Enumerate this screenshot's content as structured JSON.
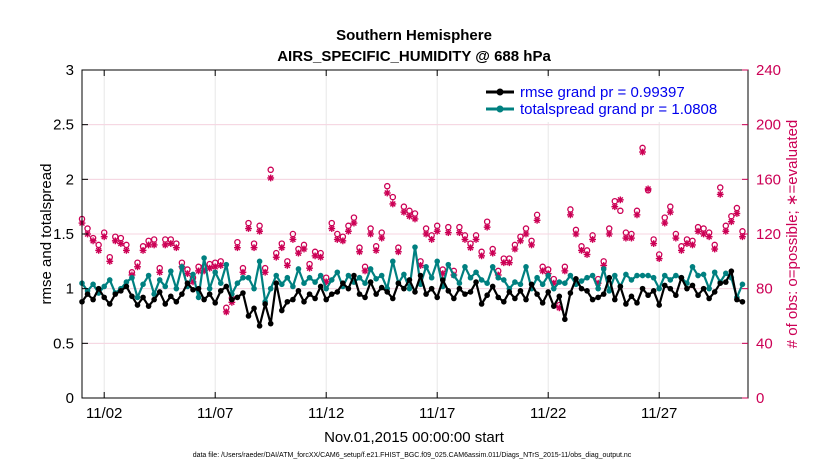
{
  "chart_data": {
    "type": "line",
    "title": "Southern Hemisphere",
    "subtitle": "AIRS_SPECIFIC_HUMIDITY @ 688 hPa",
    "xlabel": "Nov.01,2015 00:00:00 start",
    "ylabel": "rmse and totalspread",
    "y2label": "# of obs: o=possible; ∗=evaluated",
    "xlim": [
      0.5,
      30.5
    ],
    "ylim": [
      0,
      3
    ],
    "y2lim": [
      0,
      240
    ],
    "xticks": [
      1.5,
      6.5,
      11.5,
      16.5,
      21.5,
      26.5
    ],
    "xtick_labels": [
      "11/02",
      "11/07",
      "11/12",
      "11/17",
      "11/22",
      "11/27"
    ],
    "yticks": [
      0,
      0.5,
      1,
      1.5,
      2,
      2.5,
      3
    ],
    "ytick_labels": [
      "0",
      "0.5",
      "1",
      "1.5",
      "2",
      "2.5",
      "3"
    ],
    "y2ticks": [
      0,
      40,
      80,
      120,
      160,
      200,
      240
    ],
    "y2tick_labels": [
      "0",
      "40",
      "80",
      "120",
      "160",
      "200",
      "240"
    ],
    "grid": true,
    "legend_position": "top-right",
    "footnote": "data file: /Users/raeder/DAI/ATM_forcXX/CAM6_setup/f.e21.FHIST_BGC.f09_025.CAM6assim.011/Diags_NTrS_2015-11/obs_diag_output.nc",
    "x": [
      0.5,
      0.75,
      1.0,
      1.25,
      1.5,
      1.75,
      2.0,
      2.25,
      2.5,
      2.75,
      3.0,
      3.25,
      3.5,
      3.75,
      4.0,
      4.25,
      4.5,
      4.75,
      5.0,
      5.25,
      5.5,
      5.75,
      6.0,
      6.25,
      6.5,
      6.75,
      7.0,
      7.25,
      7.5,
      7.75,
      8.0,
      8.25,
      8.5,
      8.75,
      9.0,
      9.25,
      9.5,
      9.75,
      10.0,
      10.25,
      10.5,
      10.75,
      11.0,
      11.25,
      11.5,
      11.75,
      12.0,
      12.25,
      12.5,
      12.75,
      13.0,
      13.25,
      13.5,
      13.75,
      14.0,
      14.25,
      14.5,
      14.75,
      15.0,
      15.25,
      15.5,
      15.75,
      16.0,
      16.25,
      16.5,
      16.75,
      17.0,
      17.25,
      17.5,
      17.75,
      18.0,
      18.25,
      18.5,
      18.75,
      19.0,
      19.25,
      19.5,
      19.75,
      20.0,
      20.25,
      20.5,
      20.75,
      21.0,
      21.25,
      21.5,
      21.75,
      22.0,
      22.25,
      22.5,
      22.75,
      23.0,
      23.25,
      23.5,
      23.75,
      24.0,
      24.25,
      24.5,
      24.75,
      25.0,
      25.25,
      25.5,
      25.75,
      26.0,
      26.25,
      26.5,
      26.75,
      27.0,
      27.25,
      27.5,
      27.75,
      28.0,
      28.25,
      28.5,
      28.75,
      29.0,
      29.25,
      29.5,
      29.75,
      30.0,
      30.25
    ],
    "series": [
      {
        "name": "rmse grand pr = 0.99397",
        "color": "#000000",
        "axis": "left",
        "values": [
          0.88,
          0.95,
          0.9,
          1.0,
          0.92,
          0.86,
          0.95,
          0.98,
          1.02,
          0.93,
          0.85,
          0.92,
          0.84,
          0.9,
          0.97,
          0.86,
          0.93,
          0.88,
          0.95,
          1.05,
          0.99,
          1.0,
          0.9,
          0.95,
          0.87,
          0.98,
          1.02,
          0.9,
          0.92,
          0.96,
          0.75,
          0.82,
          0.66,
          0.86,
          0.68,
          1.05,
          0.8,
          0.88,
          0.9,
          0.98,
          0.88,
          0.95,
          0.91,
          1.02,
          0.9,
          0.95,
          0.97,
          1.05,
          1.0,
          1.12,
          0.95,
          0.92,
          1.06,
          0.95,
          1.01,
          0.97,
          0.91,
          1.05,
          1.0,
          1.08,
          0.97,
          1.12,
          0.95,
          1.0,
          0.92,
          1.08,
          0.98,
          0.91,
          1.0,
          0.95,
          0.97,
          1.06,
          0.86,
          0.94,
          1.02,
          0.92,
          0.88,
          0.97,
          0.91,
          0.98,
          0.9,
          1.04,
          0.95,
          0.87,
          0.97,
          0.84,
          0.93,
          0.72,
          0.96,
          1.09,
          1.0,
          0.98,
          0.9,
          0.92,
          0.95,
          1.1,
          0.9,
          1.02,
          0.86,
          0.93,
          0.87,
          1.0,
          0.94,
          0.98,
          0.85,
          1.03,
          1.0,
          0.94,
          1.1,
          1.0,
          1.03,
          0.94,
          1.0,
          0.91,
          0.97,
          1.05,
          1.06,
          1.16,
          0.9,
          0.88
        ]
      },
      {
        "name": "totalspread grand pr = 1.0808",
        "color": "#008080",
        "axis": "left",
        "values": [
          1.05,
          0.98,
          1.04,
          0.96,
          1.02,
          1.08,
          0.96,
          1.0,
          1.06,
          1.1,
          0.92,
          1.04,
          1.12,
          0.95,
          1.08,
          1.02,
          1.16,
          1.0,
          1.2,
          1.02,
          1.13,
          0.92,
          1.28,
          1.0,
          1.15,
          1.05,
          1.22,
          0.95,
          1.05,
          1.1,
          1.1,
          1.0,
          1.25,
          0.88,
          1.0,
          1.12,
          1.04,
          1.1,
          1.02,
          1.18,
          1.05,
          1.1,
          1.06,
          1.12,
          1.0,
          1.08,
          1.15,
          1.02,
          1.12,
          1.06,
          1.1,
          1.05,
          1.18,
          1.09,
          1.12,
          1.0,
          1.25,
          1.05,
          1.13,
          1.0,
          1.38,
          1.04,
          1.2,
          1.1,
          1.25,
          1.02,
          1.22,
          1.12,
          1.05,
          1.2,
          1.1,
          1.15,
          1.08,
          1.05,
          1.2,
          1.1,
          1.08,
          1.0,
          1.06,
          1.04,
          1.2,
          1.0,
          1.1,
          1.04,
          1.12,
          1.0,
          1.06,
          1.05,
          1.12,
          1.04,
          1.07,
          1.1,
          1.12,
          1.0,
          1.18,
          0.98,
          1.12,
          1.02,
          1.13,
          1.08,
          1.12,
          1.12,
          1.12,
          1.1,
          1.0,
          1.12,
          1.08,
          1.12,
          1.1,
          1.05,
          1.2,
          1.12,
          1.13,
          1.0,
          1.15,
          1.06,
          1.14,
          1.1,
          0.92,
          1.04
        ]
      },
      {
        "name": "obs possible",
        "color": "#cc0055",
        "axis": "right",
        "marker": "circle",
        "values": [
          131,
          124,
          117,
          112,
          121,
          103,
          118,
          117,
          112,
          92,
          99,
          111,
          115,
          116,
          95,
          116,
          116,
          113,
          99,
          94,
          88,
          96,
          96,
          98,
          99,
          100,
          66,
          73,
          114,
          95,
          128,
          113,
          126,
          95,
          167,
          106,
          113,
          100,
          120,
          109,
          112,
          98,
          107,
          106,
          88,
          128,
          120,
          118,
          126,
          132,
          110,
          96,
          124,
          111,
          121,
          155,
          147,
          110,
          140,
          137,
          135,
          100,
          124,
          119,
          126,
          94,
          125,
          93,
          125,
          119,
          113,
          119,
          107,
          129,
          109,
          93,
          102,
          102,
          112,
          118,
          124,
          115,
          134,
          96,
          94,
          87,
          68,
          96,
          138,
          123,
          111,
          108,
          119,
          87,
          100,
          124,
          144,
          137,
          121,
          120,
          137,
          183,
          152,
          116,
          105,
          132,
          140,
          120,
          111,
          116,
          115,
          125,
          124,
          121,
          112,
          154,
          126,
          133,
          139,
          122
        ]
      },
      {
        "name": "obs evaluated",
        "color": "#cc0055",
        "axis": "right",
        "marker": "asterisk",
        "values": [
          128,
          120,
          115,
          108,
          118,
          100,
          115,
          113,
          108,
          90,
          96,
          108,
          112,
          112,
          92,
          112,
          113,
          110,
          96,
          91,
          85,
          93,
          93,
          95,
          96,
          97,
          63,
          70,
          110,
          92,
          124,
          110,
          122,
          92,
          161,
          103,
          110,
          97,
          116,
          106,
          109,
          95,
          104,
          103,
          85,
          124,
          116,
          115,
          122,
          128,
          107,
          93,
          120,
          108,
          117,
          150,
          142,
          107,
          136,
          133,
          131,
          97,
          120,
          116,
          122,
          91,
          121,
          90,
          121,
          116,
          110,
          116,
          104,
          125,
          106,
          90,
          99,
          99,
          109,
          115,
          120,
          112,
          130,
          93,
          91,
          84,
          66,
          93,
          134,
          120,
          108,
          105,
          116,
          84,
          97,
          120,
          140,
          145,
          117,
          117,
          134,
          180,
          153,
          113,
          102,
          128,
          136,
          117,
          108,
          113,
          112,
          122,
          120,
          118,
          109,
          149,
          122,
          129,
          135,
          118
        ]
      }
    ]
  }
}
